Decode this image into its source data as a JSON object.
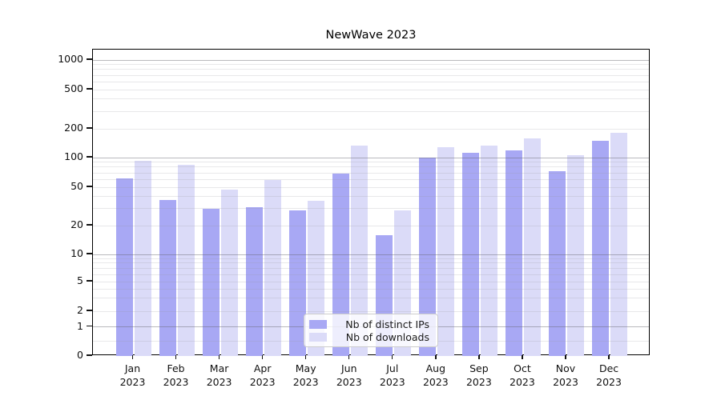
{
  "chart_data": {
    "type": "bar",
    "title": "NewWave 2023",
    "categories": [
      "Jan",
      "Feb",
      "Mar",
      "Apr",
      "May",
      "Jun",
      "Jul",
      "Aug",
      "Sep",
      "Oct",
      "Nov",
      "Dec"
    ],
    "category_year": "2023",
    "series": [
      {
        "name": "Nb of distinct IPs",
        "color": "#a8a8f4",
        "values": [
          61,
          37,
          30,
          31,
          29,
          69,
          16,
          100,
          112,
          120,
          73,
          150
        ]
      },
      {
        "name": "Nb of downloads",
        "color": "#dbdbf8",
        "values": [
          93,
          84,
          47,
          59,
          36,
          133,
          29,
          128,
          133,
          160,
          106,
          183
        ]
      }
    ],
    "yscale": "symlog",
    "y_ticks": [
      0,
      1,
      2,
      5,
      10,
      20,
      50,
      100,
      200,
      500,
      1000
    ],
    "ylim": [
      0,
      1400
    ],
    "xlabel": "",
    "ylabel": "",
    "grid": true,
    "legend_position": "lower center",
    "colors": {
      "major_gridline": "#bbbbbb",
      "minor_gridline": "#e8e8e8",
      "axis_frame": "#000000",
      "tick_text": "#111111"
    }
  }
}
